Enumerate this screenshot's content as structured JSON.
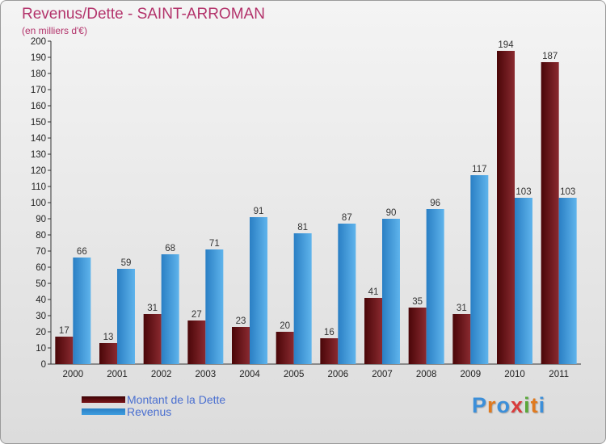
{
  "chart_data": {
    "type": "bar",
    "title": "Revenus/Dette - SAINT-ARROMAN",
    "subtitle": "(en milliers d'€)",
    "categories": [
      "2000",
      "2001",
      "2002",
      "2003",
      "2004",
      "2005",
      "2006",
      "2007",
      "2008",
      "2009",
      "2010",
      "2011"
    ],
    "series": [
      {
        "name": "Montant de la Dette",
        "color": "#7a1418",
        "values": [
          17,
          13,
          31,
          27,
          23,
          20,
          16,
          41,
          35,
          31,
          194,
          187
        ]
      },
      {
        "name": "Revenus",
        "color": "#3f9ee0",
        "values": [
          66,
          59,
          68,
          71,
          91,
          81,
          87,
          90,
          96,
          117,
          103,
          103
        ]
      }
    ],
    "ylim": [
      0,
      200
    ],
    "ytick_step": 10,
    "grid": false,
    "legend": "bottom-left"
  },
  "branding": {
    "logo_letters": [
      "P",
      "r",
      "o",
      "x",
      "i",
      "t",
      "i"
    ],
    "logo_colors": [
      "#3c8fd9",
      "#e07a1f",
      "#3c8fd9",
      "#d93c3c",
      "#5aa83a",
      "#e07a1f",
      "#3c8fd9"
    ]
  }
}
